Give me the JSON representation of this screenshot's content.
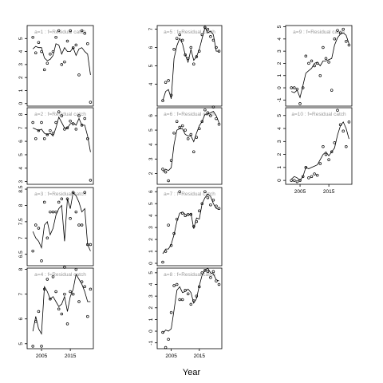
{
  "chart_data": {
    "type": "scatter",
    "xlabel": "Year",
    "x_axis_ticks": [
      2005,
      2015
    ],
    "x_range": [
      2000,
      2023
    ],
    "grid": false,
    "panels": [
      {
        "title": "a=1 : f=Residual catch",
        "ylim": [
          -0.2,
          6.0
        ],
        "yticks": [
          0,
          1,
          2,
          3,
          4,
          5
        ],
        "observed": {
          "x": [
            2002,
            2003,
            2004,
            2005,
            2006,
            2007,
            2008,
            2009,
            2010,
            2011,
            2012,
            2013,
            2014,
            2015,
            2016,
            2017,
            2018,
            2019,
            2020,
            2021,
            2022
          ],
          "y": [
            5.1,
            3.9,
            4.7,
            4.0,
            2.6,
            3.1,
            3.8,
            4.0,
            5.1,
            5.6,
            3.0,
            3.2,
            4.8,
            5.6,
            4.3,
            4.5,
            2.2,
            5.6,
            5.4,
            4.6,
            0.1
          ]
        },
        "fitted": {
          "x": [
            2002,
            2003,
            2004,
            2005,
            2006,
            2007,
            2008,
            2009,
            2010,
            2011,
            2012,
            2013,
            2014,
            2015,
            2016,
            2017,
            2018,
            2019,
            2020,
            2021,
            2022
          ],
          "y": [
            4.2,
            4.4,
            4.3,
            4.3,
            3.5,
            3.3,
            3.4,
            3.7,
            4.6,
            4.5,
            3.8,
            4.3,
            4.0,
            4.0,
            4.3,
            3.7,
            4.2,
            4.3,
            4.0,
            3.8,
            2.2
          ]
        }
      },
      {
        "title": "a=2 : f=Residual catch",
        "ylim": [
          2.8,
          8.5
        ],
        "yticks": [
          3,
          4,
          5,
          6,
          7,
          8
        ],
        "observed": {
          "x": [
            2002,
            2003,
            2004,
            2005,
            2006,
            2007,
            2008,
            2009,
            2010,
            2011,
            2012,
            2013,
            2014,
            2015,
            2016,
            2017,
            2018,
            2019,
            2020,
            2021,
            2022
          ],
          "y": [
            7.4,
            6.2,
            6.8,
            7.4,
            6.2,
            6.5,
            6.8,
            6.6,
            7.4,
            8.2,
            7.9,
            6.9,
            7.0,
            7.5,
            7.3,
            6.9,
            7.9,
            7.2,
            7.7,
            6.2,
            3.1
          ]
        },
        "fitted": {
          "x": [
            2002,
            2003,
            2004,
            2005,
            2006,
            2007,
            2008,
            2009,
            2010,
            2011,
            2012,
            2013,
            2014,
            2015,
            2016,
            2017,
            2018,
            2019,
            2020,
            2021,
            2022
          ],
          "y": [
            7.0,
            6.9,
            6.8,
            6.9,
            6.6,
            6.5,
            6.6,
            6.4,
            7.0,
            7.8,
            7.4,
            7.0,
            7.0,
            7.3,
            7.4,
            7.2,
            7.7,
            7.2,
            7.2,
            6.4,
            5.2
          ]
        }
      },
      {
        "title": "a=3 : f=Residual catch",
        "ylim": [
          6.15,
          8.55
        ],
        "yticks": [
          6.5,
          7.0,
          7.5,
          8.0,
          8.5
        ],
        "observed": {
          "x": [
            2002,
            2003,
            2004,
            2005,
            2006,
            2007,
            2008,
            2009,
            2010,
            2011,
            2012,
            2013,
            2014,
            2015,
            2016,
            2017,
            2018,
            2019,
            2020,
            2021,
            2022
          ],
          "y": [
            6.6,
            7.4,
            7.3,
            6.3,
            8.1,
            7.0,
            7.8,
            7.8,
            7.8,
            8.1,
            8.2,
            6.1,
            8.2,
            7.6,
            8.4,
            7.8,
            7.4,
            7.4,
            8.4,
            6.8,
            6.8
          ]
        },
        "fitted": {
          "x": [
            2002,
            2003,
            2004,
            2005,
            2006,
            2007,
            2008,
            2009,
            2010,
            2011,
            2012,
            2013,
            2014,
            2015,
            2016,
            2017,
            2018,
            2019,
            2020,
            2021,
            2022
          ],
          "y": [
            7.2,
            7.0,
            6.9,
            6.7,
            7.4,
            7.5,
            7.1,
            7.3,
            7.7,
            7.9,
            8.0,
            6.9,
            8.2,
            7.9,
            8.4,
            8.3,
            8.1,
            7.8,
            7.9,
            6.8,
            6.6
          ]
        }
      },
      {
        "title": "a=4 : f=Residual catch",
        "ylim": [
          4.8,
          8.05
        ],
        "yticks": [
          5.0,
          6.0,
          7.0,
          8.0
        ],
        "observed": {
          "x": [
            2002,
            2003,
            2004,
            2005,
            2006,
            2007,
            2008,
            2009,
            2010,
            2011,
            2012,
            2013,
            2014,
            2015,
            2016,
            2017,
            2018,
            2019,
            2020,
            2021,
            2022
          ],
          "y": [
            4.9,
            5.9,
            6.3,
            4.9,
            7.2,
            7.6,
            6.8,
            7.7,
            7.1,
            6.4,
            6.2,
            7.0,
            5.8,
            7.1,
            7.0,
            8.0,
            6.7,
            7.5,
            7.3,
            6.1,
            7.2
          ]
        },
        "fitted": {
          "x": [
            2002,
            2003,
            2004,
            2005,
            2006,
            2007,
            2008,
            2009,
            2010,
            2011,
            2012,
            2013,
            2014,
            2015,
            2016,
            2017,
            2018,
            2019,
            2020,
            2021,
            2022
          ],
          "y": [
            5.5,
            6.1,
            5.6,
            5.4,
            7.3,
            7.1,
            6.8,
            6.9,
            6.7,
            6.5,
            6.6,
            6.9,
            6.3,
            6.9,
            7.2,
            7.8,
            7.6,
            7.4,
            7.1,
            6.7,
            6.7
          ]
        }
      },
      {
        "title": "a=5 : f=Residual catch",
        "ylim": [
          2.8,
          7.2
        ],
        "yticks": [
          4,
          5,
          6,
          7
        ],
        "observed": {
          "x": [
            2002,
            2003,
            2004,
            2005,
            2006,
            2007,
            2008,
            2009,
            2010,
            2011,
            2012,
            2013,
            2014,
            2015,
            2016,
            2017,
            2018,
            2019,
            2020,
            2021,
            2022
          ],
          "y": [
            3.1,
            4.1,
            4.2,
            3.4,
            5.9,
            6.5,
            6.7,
            6.4,
            5.6,
            5.4,
            6.0,
            5.1,
            5.5,
            5.8,
            6.7,
            7.1,
            7.0,
            6.6,
            6.4,
            6.0,
            5.8
          ]
        },
        "fitted": {
          "x": [
            2002,
            2003,
            2004,
            2005,
            2006,
            2007,
            2008,
            2009,
            2010,
            2011,
            2012,
            2013,
            2014,
            2015,
            2016,
            2017,
            2018,
            2019,
            2020,
            2021,
            2022
          ],
          "y": [
            3.1,
            3.6,
            3.7,
            3.2,
            5.4,
            6.1,
            6.5,
            6.2,
            5.6,
            5.2,
            5.9,
            5.3,
            5.5,
            5.9,
            6.5,
            7.1,
            6.8,
            6.9,
            6.7,
            5.8,
            5.8
          ]
        }
      },
      {
        "title": "a=6 : f=Residual catch",
        "ylim": [
          1.25,
          6.55
        ],
        "yticks": [
          2,
          3,
          4,
          5,
          6
        ],
        "observed": {
          "x": [
            2002,
            2003,
            2004,
            2005,
            2006,
            2007,
            2008,
            2009,
            2010,
            2011,
            2012,
            2013,
            2014,
            2015,
            2016,
            2017,
            2018,
            2019,
            2020,
            2021,
            2022
          ],
          "y": [
            2.3,
            2.1,
            1.5,
            2.9,
            4.8,
            5.6,
            5.2,
            5.3,
            5.0,
            4.4,
            4.7,
            3.5,
            4.5,
            5.1,
            5.6,
            6.4,
            6.2,
            6.0,
            6.6,
            5.8,
            5.4
          ]
        },
        "fitted": {
          "x": [
            2002,
            2003,
            2004,
            2005,
            2006,
            2007,
            2008,
            2009,
            2010,
            2011,
            2012,
            2013,
            2014,
            2015,
            2016,
            2017,
            2018,
            2019,
            2020,
            2021,
            2022
          ],
          "y": [
            2.1,
            2.3,
            2.2,
            2.4,
            4.0,
            5.0,
            5.1,
            5.1,
            4.7,
            4.6,
            4.6,
            4.2,
            4.8,
            5.3,
            5.6,
            6.1,
            6.1,
            6.2,
            6.3,
            6.0,
            5.5
          ]
        }
      },
      {
        "title": "a=7 : f=Residual catch",
        "ylim": [
          -0.2,
          6.35
        ],
        "yticks": [
          0,
          1,
          2,
          3,
          4,
          5,
          6
        ],
        "observed": {
          "x": [
            2002,
            2003,
            2004,
            2005,
            2006,
            2007,
            2008,
            2009,
            2010,
            2011,
            2012,
            2013,
            2014,
            2015,
            2016,
            2017,
            2018,
            2019,
            2020,
            2021,
            2022
          ],
          "y": [
            0.1,
            1.0,
            3.2,
            1.5,
            2.5,
            3.7,
            6.0,
            4.2,
            4.0,
            4.1,
            4.1,
            3.1,
            3.5,
            4.4,
            5.0,
            6.0,
            5.5,
            4.9,
            5.3,
            4.8,
            4.6
          ]
        },
        "fitted": {
          "x": [
            2002,
            2003,
            2004,
            2005,
            2006,
            2007,
            2008,
            2009,
            2010,
            2011,
            2012,
            2013,
            2014,
            2015,
            2016,
            2017,
            2018,
            2019,
            2020,
            2021,
            2022
          ],
          "y": [
            0.8,
            1.2,
            1.2,
            1.6,
            2.4,
            3.5,
            4.2,
            4.3,
            4.1,
            4.0,
            4.2,
            2.9,
            3.8,
            3.7,
            5.0,
            5.5,
            5.8,
            5.6,
            5.0,
            4.6,
            4.5
          ]
        }
      },
      {
        "title": "a=8 : f=Residual catch",
        "ylim": [
          -1.5,
          5.4
        ],
        "yticks": [
          -1,
          0,
          1,
          2,
          3,
          4,
          5
        ],
        "observed": {
          "x": [
            2002,
            2003,
            2004,
            2005,
            2006,
            2007,
            2008,
            2009,
            2010,
            2011,
            2012,
            2013,
            2014,
            2015,
            2016,
            2017,
            2018,
            2019,
            2020,
            2021,
            2022
          ],
          "y": [
            -0.1,
            -1.4,
            -0.7,
            1.6,
            3.9,
            4.0,
            2.7,
            2.7,
            3.5,
            3.2,
            2.3,
            2.6,
            3.0,
            3.8,
            5.0,
            5.2,
            5.1,
            4.6,
            5.1,
            4.3,
            4.0
          ]
        },
        "fitted": {
          "x": [
            2002,
            2003,
            2004,
            2005,
            2006,
            2007,
            2008,
            2009,
            2010,
            2011,
            2012,
            2013,
            2014,
            2015,
            2016,
            2017,
            2018,
            2019,
            2020,
            2021,
            2022
          ],
          "y": [
            -0.2,
            0.1,
            0.0,
            0.2,
            1.8,
            3.5,
            3.8,
            3.3,
            3.4,
            3.6,
            3.3,
            2.4,
            2.8,
            3.9,
            4.8,
            5.2,
            5.4,
            5.0,
            4.9,
            4.4,
            4.3
          ]
        }
      },
      {
        "title": "a=9 : f=Residual catch",
        "ylim": [
          -1.5,
          5.1
        ],
        "yticks": [
          -1,
          0,
          1,
          2,
          3,
          4,
          5
        ],
        "observed": {
          "x": [
            2002,
            2003,
            2004,
            2005,
            2006,
            2007,
            2008,
            2009,
            2010,
            2011,
            2012,
            2013,
            2014,
            2015,
            2016,
            2017,
            2018,
            2019,
            2020,
            2021,
            2022
          ],
          "y": [
            0.0,
            0.0,
            -0.1,
            -1.3,
            0.0,
            2.6,
            2.0,
            2.2,
            1.8,
            2.0,
            1.0,
            3.3,
            2.4,
            2.1,
            -0.2,
            4.0,
            4.7,
            4.5,
            4.8,
            3.8,
            3.5
          ]
        },
        "fitted": {
          "x": [
            2002,
            2003,
            2004,
            2005,
            2006,
            2007,
            2008,
            2009,
            2010,
            2011,
            2012,
            2013,
            2014,
            2015,
            2016,
            2017,
            2018,
            2019,
            2020,
            2021,
            2022
          ],
          "y": [
            -0.3,
            -0.4,
            -0.2,
            -0.8,
            0.2,
            1.2,
            1.4,
            1.6,
            2.0,
            2.1,
            1.8,
            2.2,
            2.2,
            2.3,
            2.4,
            3.5,
            4.1,
            4.4,
            4.5,
            4.3,
            3.6
          ]
        }
      },
      {
        "title": "a=10 : f=Residual catch",
        "ylim": [
          -0.3,
          5.6
        ],
        "yticks": [
          0,
          1,
          2,
          3,
          4,
          5
        ],
        "observed": {
          "x": [
            2002,
            2003,
            2004,
            2005,
            2006,
            2007,
            2008,
            2009,
            2010,
            2011,
            2012,
            2013,
            2014,
            2015,
            2016,
            2017,
            2018,
            2019,
            2020,
            2021,
            2022
          ],
          "y": [
            0.0,
            0.0,
            -0.1,
            0.0,
            0.3,
            1.0,
            0.2,
            0.3,
            0.5,
            0.4,
            1.3,
            2.6,
            2.0,
            1.6,
            2.2,
            2.9,
            5.4,
            4.3,
            3.8,
            2.6,
            4.5
          ]
        },
        "fitted": {
          "x": [
            2002,
            2003,
            2004,
            2005,
            2006,
            2007,
            2008,
            2009,
            2010,
            2011,
            2012,
            2013,
            2014,
            2015,
            2016,
            2017,
            2018,
            2019,
            2020,
            2021,
            2022
          ],
          "y": [
            0.1,
            0.3,
            0.2,
            0.0,
            0.3,
            1.0,
            0.9,
            1.0,
            1.1,
            1.2,
            1.6,
            2.0,
            2.2,
            1.9,
            2.2,
            2.5,
            3.5,
            4.2,
            4.5,
            4.0,
            3.2
          ]
        }
      }
    ]
  }
}
